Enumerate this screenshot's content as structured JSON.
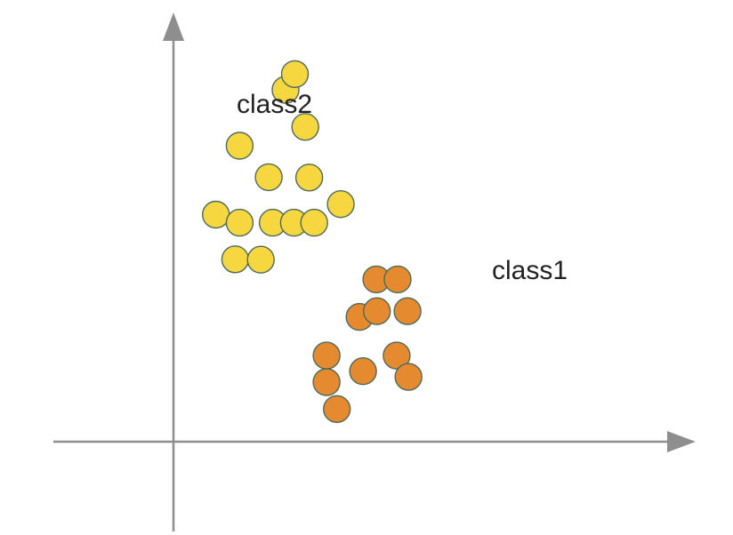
{
  "chart_data": {
    "type": "scatter",
    "xlim": [
      0,
      100
    ],
    "ylim": [
      0,
      100
    ],
    "grid": false,
    "legend": "none",
    "series": [
      {
        "name": "class2",
        "color": "#f6d73f",
        "points": [
          [
            22.7,
            87.4
          ],
          [
            24.6,
            91.3
          ],
          [
            26.7,
            78.2
          ],
          [
            13.4,
            73.5
          ],
          [
            19.3,
            65.7
          ],
          [
            27.5,
            65.6
          ],
          [
            33.9,
            59.0
          ],
          [
            8.6,
            56.4
          ],
          [
            13.4,
            54.4
          ],
          [
            20.1,
            54.4
          ],
          [
            24.4,
            54.4
          ],
          [
            28.5,
            54.4
          ],
          [
            12.5,
            45.3
          ],
          [
            17.7,
            45.2
          ]
        ]
      },
      {
        "name": "class1",
        "color": "#e68a2f",
        "points": [
          [
            41.1,
            40.3
          ],
          [
            45.4,
            40.3
          ],
          [
            37.7,
            31.0
          ],
          [
            41.2,
            32.4
          ],
          [
            47.4,
            32.4
          ],
          [
            31.0,
            21.4
          ],
          [
            45.2,
            21.4
          ],
          [
            38.4,
            17.5
          ],
          [
            47.6,
            16.1
          ],
          [
            31.0,
            14.8
          ],
          [
            33.1,
            8.1
          ]
        ]
      }
    ]
  }
}
